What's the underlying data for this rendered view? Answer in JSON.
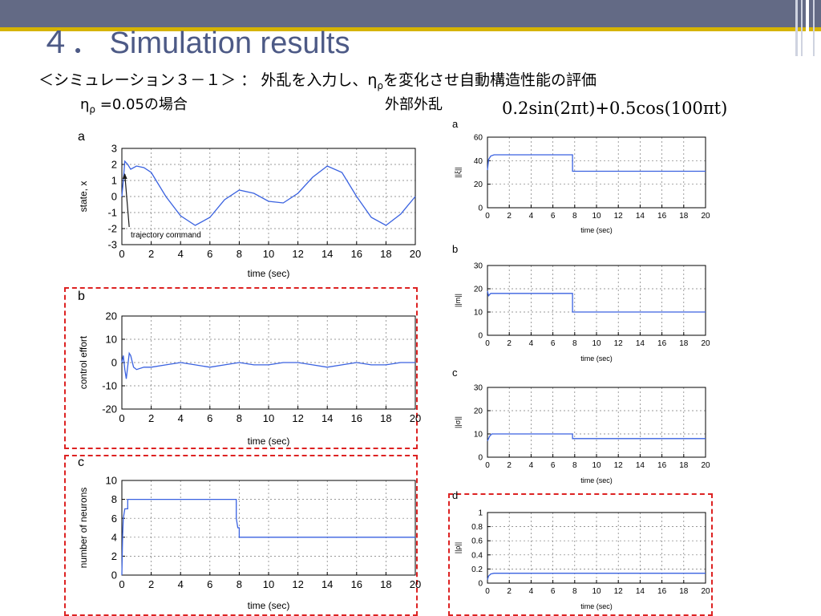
{
  "slide": {
    "title": "４． Simulation results",
    "subtitle": "＜シミュレーション３－１＞ ： 外乱を入力し、η",
    "subtitle_sub": "ρ",
    "subtitle_tail": "を変化させ自動構造性能の評価",
    "condition_eta": "η",
    "condition_sub": "ρ",
    "condition_value": " =0.05の場合",
    "disturbance_label": "外部外乱",
    "disturbance_formula": "0.2sin(2πt)+0.5cos(100πt)"
  },
  "colors": {
    "series": "#3a62e0",
    "ref": "#1a1a1a",
    "highlight": "#dd2222",
    "title": "#4d5a86",
    "band": "#636a85",
    "gold": "#d6b400"
  },
  "chart_data": [
    {
      "id": "left-a",
      "panel_label": "a",
      "type": "line",
      "xlabel": "time (sec)",
      "ylabel": "state, x",
      "xlim": [
        0,
        20
      ],
      "ylim": [
        -3,
        3
      ],
      "xticks": [
        0,
        2,
        4,
        6,
        8,
        10,
        12,
        14,
        16,
        18,
        20
      ],
      "yticks": [
        -3,
        -2,
        -1,
        0,
        1,
        2,
        3
      ],
      "grid": true,
      "annotation": "trajectory command",
      "series": [
        {
          "x": [
            0,
            0.1,
            0.2,
            0.4,
            0.6,
            1,
            1.5,
            2,
            3,
            4,
            5,
            6,
            7,
            8,
            9,
            10,
            11,
            12,
            13,
            14,
            15,
            16,
            17,
            18,
            19,
            20
          ],
          "y": [
            0,
            1.0,
            2.2,
            2.0,
            1.7,
            1.9,
            1.8,
            1.5,
            0.0,
            -1.2,
            -1.8,
            -1.3,
            -0.2,
            0.4,
            0.2,
            -0.3,
            -0.4,
            0.2,
            1.2,
            1.9,
            1.5,
            0.0,
            -1.3,
            -1.8,
            -1.1,
            0.0
          ]
        }
      ]
    },
    {
      "id": "left-b",
      "panel_label": "b",
      "type": "line",
      "xlabel": "time (sec)",
      "ylabel": "control effort",
      "xlim": [
        0,
        20
      ],
      "ylim": [
        -20,
        20
      ],
      "xticks": [
        0,
        2,
        4,
        6,
        8,
        10,
        12,
        14,
        16,
        18,
        20
      ],
      "yticks": [
        -20,
        -10,
        0,
        10,
        20
      ],
      "grid": true,
      "series": [
        {
          "x": [
            0,
            0.1,
            0.2,
            0.3,
            0.5,
            0.6,
            0.8,
            1,
            1.5,
            2,
            3,
            4,
            5,
            6,
            7,
            8,
            9,
            10,
            11,
            12,
            13,
            14,
            15,
            16,
            17,
            18,
            19,
            20
          ],
          "y": [
            0,
            3,
            -3,
            -7,
            4,
            3,
            -2,
            -3,
            -2,
            -2,
            -1,
            0,
            -1,
            -2,
            -1,
            0,
            -1,
            -1,
            0,
            0,
            -1,
            -2,
            -1,
            0,
            -1,
            -1,
            0,
            0
          ]
        }
      ]
    },
    {
      "id": "left-c",
      "panel_label": "c",
      "type": "line",
      "xlabel": "time (sec)",
      "ylabel": "number of neurons",
      "xlim": [
        0,
        20
      ],
      "ylim": [
        0,
        10
      ],
      "xticks": [
        0,
        2,
        4,
        6,
        8,
        10,
        12,
        14,
        16,
        18,
        20
      ],
      "yticks": [
        0,
        2,
        4,
        6,
        8,
        10
      ],
      "grid": true,
      "series": [
        {
          "x": [
            0,
            0.05,
            0.1,
            0.2,
            0.3,
            0.4,
            0.4,
            0.6,
            7.8,
            7.8,
            7.9,
            8.0,
            8.0,
            20
          ],
          "y": [
            0,
            4,
            6,
            7,
            7,
            7,
            8,
            8,
            8,
            6,
            5,
            5,
            4,
            4
          ]
        }
      ]
    },
    {
      "id": "right-a",
      "panel_label": "a",
      "type": "line",
      "xlabel": "time (sec)",
      "ylabel": "||ξ||",
      "xlim": [
        0,
        20
      ],
      "ylim": [
        0,
        60
      ],
      "xticks": [
        0,
        2,
        4,
        6,
        8,
        10,
        12,
        14,
        16,
        18,
        20
      ],
      "yticks": [
        0,
        20,
        40,
        60
      ],
      "grid": true,
      "series": [
        {
          "x": [
            0,
            0.1,
            0.3,
            0.6,
            7.8,
            7.8,
            20
          ],
          "y": [
            32,
            41,
            44,
            45,
            45,
            31,
            31
          ]
        }
      ]
    },
    {
      "id": "right-b",
      "panel_label": "b",
      "type": "line",
      "xlabel": "time (sec)",
      "ylabel": "||m||",
      "xlim": [
        0,
        20
      ],
      "ylim": [
        0,
        30
      ],
      "xticks": [
        0,
        2,
        4,
        6,
        8,
        10,
        12,
        14,
        16,
        18,
        20
      ],
      "yticks": [
        0,
        10,
        20,
        30
      ],
      "grid": true,
      "series": [
        {
          "x": [
            0,
            0.1,
            0.3,
            7.8,
            7.8,
            20
          ],
          "y": [
            19,
            17,
            18,
            18,
            10,
            10
          ]
        }
      ]
    },
    {
      "id": "right-c",
      "panel_label": "c",
      "type": "line",
      "xlabel": "time (sec)",
      "ylabel": "||σ||",
      "xlim": [
        0,
        20
      ],
      "ylim": [
        0,
        30
      ],
      "xticks": [
        0,
        2,
        4,
        6,
        8,
        10,
        12,
        14,
        16,
        18,
        20
      ],
      "yticks": [
        0,
        10,
        20,
        30
      ],
      "grid": true,
      "series": [
        {
          "x": [
            0,
            0.2,
            0.4,
            7.8,
            7.8,
            20
          ],
          "y": [
            7,
            9,
            10,
            10,
            8,
            8
          ]
        }
      ]
    },
    {
      "id": "right-d",
      "panel_label": "d",
      "type": "line",
      "xlabel": "time (sec)",
      "ylabel": "||ρ||",
      "xlim": [
        0,
        20
      ],
      "ylim": [
        0,
        1
      ],
      "xticks": [
        0,
        2,
        4,
        6,
        8,
        10,
        12,
        14,
        16,
        18,
        20
      ],
      "yticks": [
        0,
        0.2,
        0.4,
        0.6,
        0.8,
        1
      ],
      "grid": true,
      "series": [
        {
          "x": [
            0,
            0.1,
            0.3,
            0.6,
            20
          ],
          "y": [
            0.05,
            0.1,
            0.13,
            0.14,
            0.14
          ]
        }
      ]
    }
  ]
}
